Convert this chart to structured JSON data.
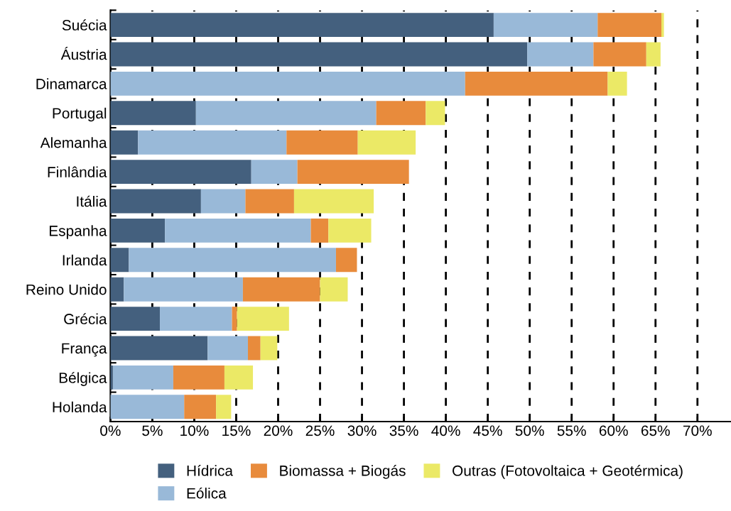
{
  "chart_data": {
    "type": "bar",
    "orientation": "horizontal",
    "stacked": true,
    "categories": [
      "Suécia",
      "Áustria",
      "Dinamarca",
      "Portugal",
      "Alemanha",
      "Finlândia",
      "Itália",
      "Espanha",
      "Irlanda",
      "Reino Unido",
      "Grécia",
      "França",
      "Bélgica",
      "Holanda"
    ],
    "series": [
      {
        "name": "Hídrica",
        "color": "#44607e",
        "values": [
          45.7,
          49.7,
          0,
          10.2,
          3.3,
          16.8,
          10.8,
          6.5,
          2.2,
          1.6,
          5.9,
          11.6,
          0.3,
          0
        ]
      },
      {
        "name": "Eólica",
        "color": "#99b9d8",
        "values": [
          12.4,
          7.9,
          42.3,
          21.5,
          17.7,
          5.5,
          5.3,
          17.4,
          24.7,
          14.2,
          8.6,
          4.8,
          7.2,
          8.8
        ]
      },
      {
        "name": "Biomassa + Biogás",
        "color": "#e88b3c",
        "values": [
          7.6,
          6.3,
          17.0,
          5.9,
          8.5,
          13.3,
          5.8,
          2.1,
          2.5,
          9.2,
          0.6,
          1.5,
          6.1,
          3.8
        ]
      },
      {
        "name": "Outras (Fotovoltaica + Geotérmica)",
        "color": "#ebe966",
        "values": [
          0.3,
          1.7,
          2.3,
          2.3,
          6.9,
          0,
          9.5,
          5.1,
          0,
          3.3,
          6.2,
          2.0,
          3.4,
          1.8
        ]
      }
    ],
    "xlim": [
      0,
      74
    ],
    "xticks": [
      {
        "value": 0,
        "label": "0%"
      },
      {
        "value": 5,
        "label": "5%"
      },
      {
        "value": 10,
        "label": "10%"
      },
      {
        "value": 15,
        "label": "15%"
      },
      {
        "value": 20,
        "label": "20%"
      },
      {
        "value": 25,
        "label": "25%"
      },
      {
        "value": 30,
        "label": "30%"
      },
      {
        "value": 35,
        "label": "35%"
      },
      {
        "value": 40,
        "label": "40%"
      },
      {
        "value": 45,
        "label": "45%"
      },
      {
        "value": 50,
        "label": "50%"
      },
      {
        "value": 55,
        "label": "55%"
      },
      {
        "value": 60,
        "label": "60%"
      },
      {
        "value": 65,
        "label": "65%"
      },
      {
        "value": 70,
        "label": "70%"
      }
    ],
    "grid": "x",
    "legend": "bottom"
  }
}
